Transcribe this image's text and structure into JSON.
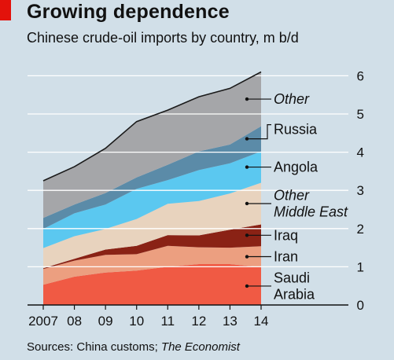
{
  "header": {
    "title": "Growing dependence",
    "subtitle": "Chinese crude-oil imports by country, m b/d"
  },
  "footer": {
    "source_prefix": "Sources: China customs; ",
    "source_italic": "The Economist"
  },
  "colors": {
    "background": "#d1dfe8",
    "accent": "#e3120b",
    "gridline": "#ffffff",
    "outline": "#1a1a1a"
  },
  "chart_data": {
    "type": "area",
    "stacked": true,
    "x": [
      2007,
      2008,
      2009,
      2010,
      2011,
      2012,
      2013,
      2014
    ],
    "x_tick_labels": [
      "2007",
      "08",
      "09",
      "10",
      "11",
      "12",
      "13",
      "14"
    ],
    "y_ticks": [
      0,
      1,
      2,
      3,
      4,
      5,
      6
    ],
    "ylim": [
      0,
      6
    ],
    "y_axis_side": "right",
    "grid": true,
    "series": [
      {
        "name": "Saudi Arabia",
        "label_lines": [
          "Saudi",
          "Arabia"
        ],
        "italic": false,
        "color": "#f05a44",
        "values": [
          0.53,
          0.74,
          0.85,
          0.9,
          1.0,
          1.07,
          1.07,
          0.99
        ]
      },
      {
        "name": "Iran",
        "label_lines": [
          "Iran"
        ],
        "italic": false,
        "color": "#ec9f80",
        "values": [
          0.41,
          0.42,
          0.46,
          0.43,
          0.55,
          0.44,
          0.43,
          0.55
        ]
      },
      {
        "name": "Iraq",
        "label_lines": [
          "Iraq"
        ],
        "italic": false,
        "color": "#8a2215",
        "values": [
          0.02,
          0.05,
          0.14,
          0.22,
          0.28,
          0.31,
          0.47,
          0.57
        ]
      },
      {
        "name": "Other Middle East",
        "label_lines": [
          "Other",
          "Middle East"
        ],
        "italic": true,
        "color": "#e8d3be",
        "values": [
          0.53,
          0.59,
          0.54,
          0.7,
          0.82,
          0.9,
          0.95,
          1.09
        ]
      },
      {
        "name": "Angola",
        "label_lines": [
          "Angola"
        ],
        "italic": false,
        "color": "#5bc8f0",
        "values": [
          0.5,
          0.6,
          0.64,
          0.79,
          0.62,
          0.81,
          0.79,
          0.82
        ]
      },
      {
        "name": "Russia",
        "label_lines": [
          "Russia"
        ],
        "italic": false,
        "color": "#5b8ba8",
        "values": [
          0.29,
          0.23,
          0.3,
          0.3,
          0.4,
          0.49,
          0.49,
          0.66
        ]
      },
      {
        "name": "Other",
        "label_lines": [
          "Other"
        ],
        "italic": true,
        "color": "#a5a6a9",
        "values": [
          0.97,
          0.99,
          1.17,
          1.46,
          1.43,
          1.43,
          1.47,
          1.42
        ]
      }
    ]
  }
}
